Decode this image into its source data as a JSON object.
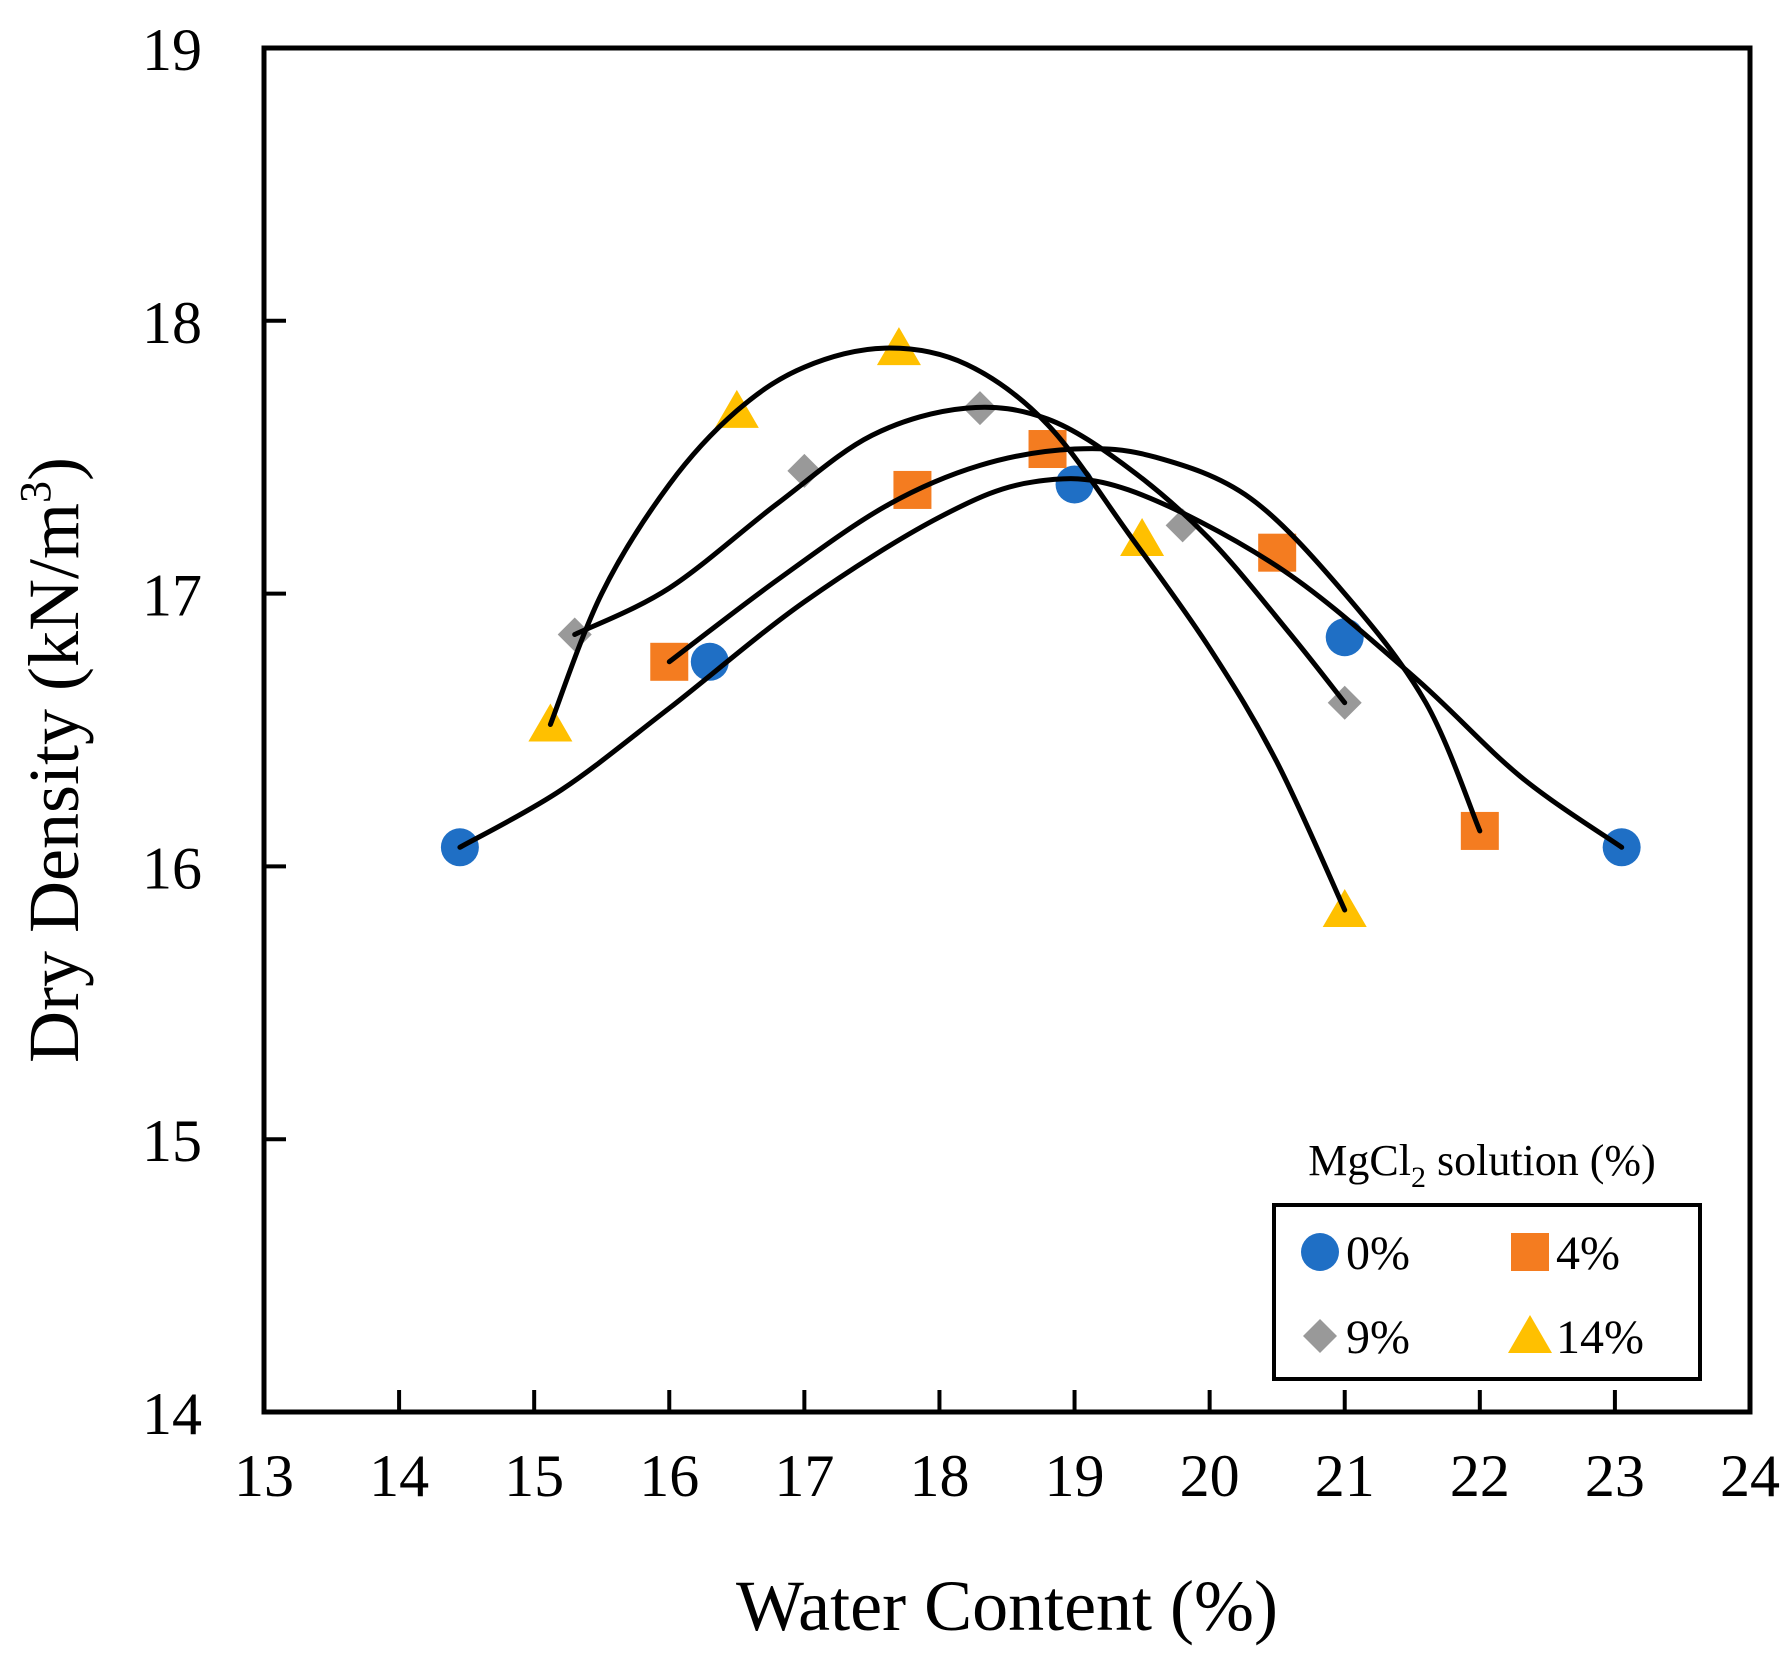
{
  "chart_data": {
    "type": "scatter",
    "xlabel": "Water Content (%)",
    "ylabel_main": "Dry Density (kN/m",
    "ylabel_sup": "3",
    "ylabel_close": ")",
    "xlim": [
      13,
      24
    ],
    "ylim": [
      14,
      19
    ],
    "xticks": [
      13,
      14,
      15,
      16,
      17,
      18,
      19,
      20,
      21,
      22,
      23,
      24
    ],
    "yticks": [
      14,
      15,
      16,
      17,
      18,
      19
    ],
    "grid": false,
    "legend": {
      "title_main": "MgCl",
      "title_sub": "2",
      "title_rest": " solution (%)",
      "placement": "bottom-right"
    },
    "series": [
      {
        "name": "0%",
        "marker": "circle",
        "color": "#1f6fc5",
        "x": [
          14.45,
          16.3,
          19.0,
          21.0,
          23.05
        ],
        "y": [
          16.07,
          16.75,
          17.4,
          16.84,
          16.07
        ]
      },
      {
        "name": "4%",
        "marker": "square",
        "color": "#f47c20",
        "x": [
          16.0,
          17.8,
          18.8,
          20.5,
          22.0
        ],
        "y": [
          16.75,
          17.38,
          17.53,
          17.15,
          16.13
        ]
      },
      {
        "name": "9%",
        "marker": "diamond",
        "color": "#999999",
        "x": [
          15.3,
          17.0,
          18.3,
          19.8,
          21.0
        ],
        "y": [
          16.85,
          17.45,
          17.68,
          17.25,
          16.6
        ]
      },
      {
        "name": "14%",
        "marker": "triangle",
        "color": "#ffc000",
        "x": [
          15.12,
          16.5,
          17.7,
          19.5,
          21.0
        ],
        "y": [
          16.52,
          17.67,
          17.9,
          17.2,
          15.84
        ]
      }
    ],
    "curves": [
      {
        "name": "0%-fit",
        "points": [
          [
            14.45,
            16.07
          ],
          [
            15.2,
            16.28
          ],
          [
            16.0,
            16.58
          ],
          [
            17.0,
            16.97
          ],
          [
            18.0,
            17.28
          ],
          [
            18.7,
            17.41
          ],
          [
            19.4,
            17.38
          ],
          [
            20.5,
            17.1
          ],
          [
            21.5,
            16.7
          ],
          [
            22.3,
            16.33
          ],
          [
            23.05,
            16.07
          ]
        ]
      },
      {
        "name": "4%-fit",
        "points": [
          [
            16.0,
            16.75
          ],
          [
            16.8,
            17.05
          ],
          [
            17.6,
            17.32
          ],
          [
            18.3,
            17.47
          ],
          [
            19.0,
            17.53
          ],
          [
            19.6,
            17.5
          ],
          [
            20.3,
            17.35
          ],
          [
            21.0,
            17.0
          ],
          [
            21.6,
            16.6
          ],
          [
            22.0,
            16.13
          ]
        ]
      },
      {
        "name": "9%-fit",
        "points": [
          [
            15.3,
            16.85
          ],
          [
            16.0,
            17.02
          ],
          [
            16.8,
            17.33
          ],
          [
            17.5,
            17.58
          ],
          [
            18.2,
            17.68
          ],
          [
            18.8,
            17.64
          ],
          [
            19.4,
            17.46
          ],
          [
            20.0,
            17.2
          ],
          [
            20.6,
            16.85
          ],
          [
            21.0,
            16.6
          ]
        ]
      },
      {
        "name": "14%-fit",
        "points": [
          [
            15.12,
            16.52
          ],
          [
            15.5,
            17.0
          ],
          [
            16.0,
            17.4
          ],
          [
            16.5,
            17.67
          ],
          [
            17.0,
            17.83
          ],
          [
            17.6,
            17.9
          ],
          [
            18.2,
            17.84
          ],
          [
            18.8,
            17.62
          ],
          [
            19.4,
            17.22
          ],
          [
            20.0,
            16.8
          ],
          [
            20.5,
            16.38
          ],
          [
            21.0,
            15.84
          ]
        ]
      }
    ]
  }
}
